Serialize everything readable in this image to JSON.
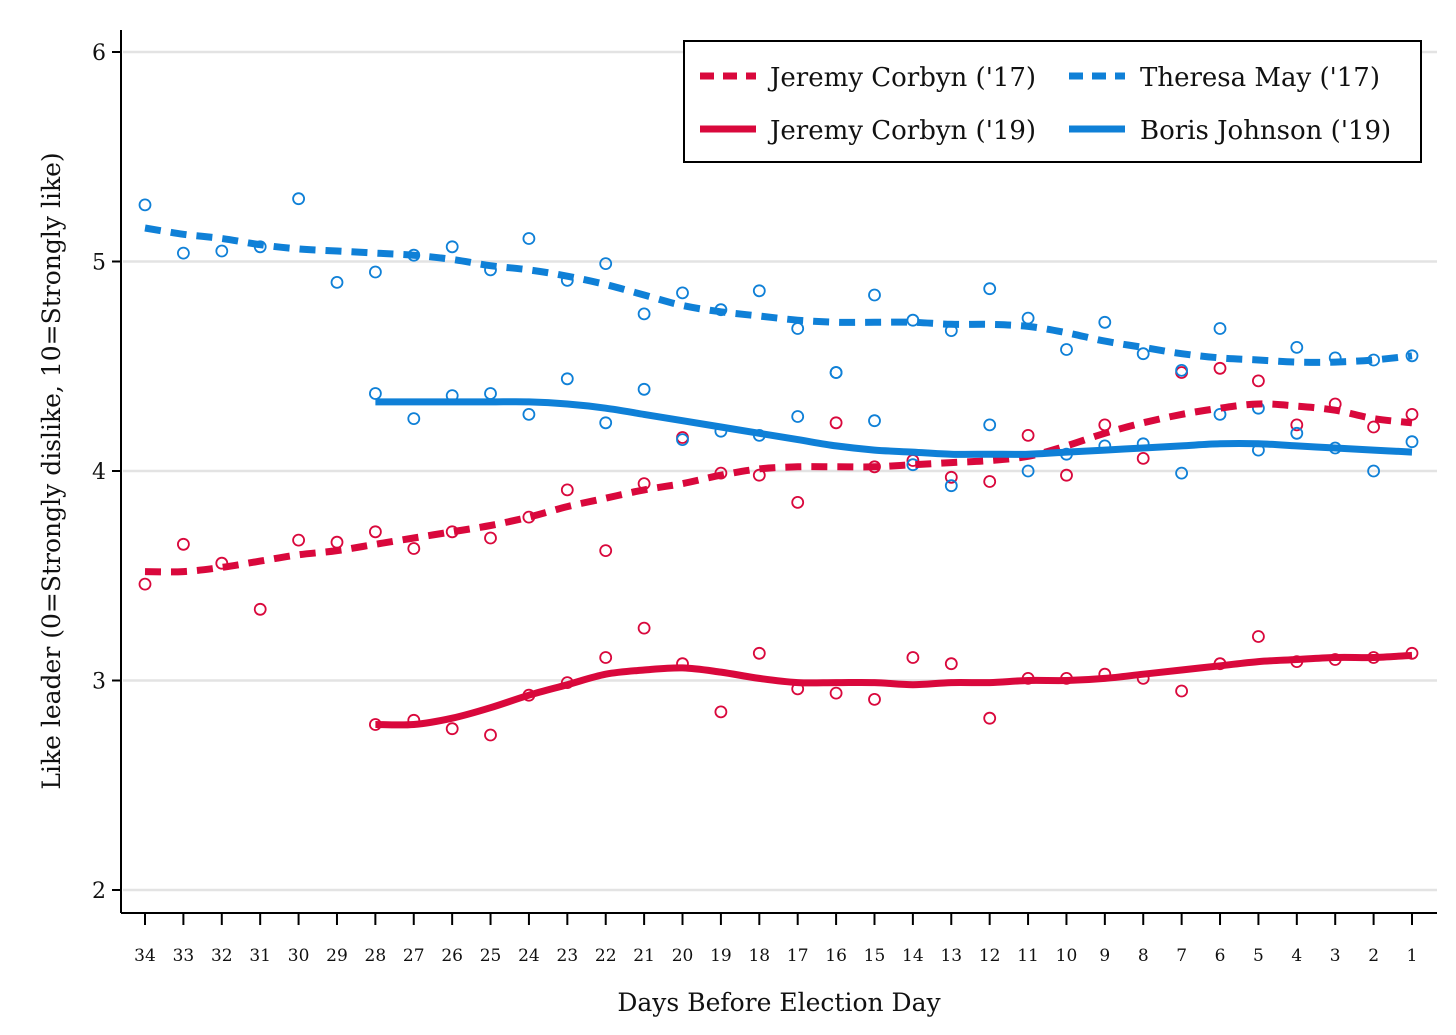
{
  "chart_data": {
    "type": "line",
    "title": "",
    "xlabel": "Days Before Election Day",
    "ylabel": "Like leader (0=Strongly dislike, 10=Strongly like)",
    "x_reversed": true,
    "xlim": [
      34,
      1
    ],
    "ylim": [
      2,
      6
    ],
    "x_ticks": [
      34,
      33,
      32,
      31,
      30,
      29,
      28,
      27,
      26,
      25,
      24,
      23,
      22,
      21,
      20,
      19,
      18,
      17,
      16,
      15,
      14,
      13,
      12,
      11,
      10,
      9,
      8,
      7,
      6,
      5,
      4,
      3,
      2,
      1
    ],
    "y_ticks": [
      2,
      3,
      4,
      5,
      6
    ],
    "grid": "horizontal",
    "legend_placement": "top-right",
    "colors": {
      "labour": "#d9083c",
      "conservative": "#0f80d7"
    },
    "series": [
      {
        "name": "Jeremy Corbyn ('17)",
        "color": "#d9083c",
        "line_style": "dashed",
        "x": [
          34,
          33,
          32,
          31,
          30,
          29,
          28,
          27,
          26,
          25,
          24,
          23,
          22,
          21,
          20,
          19,
          18,
          17,
          16,
          15,
          14,
          13,
          12,
          11,
          10,
          9,
          8,
          7,
          6,
          5,
          4,
          3,
          2,
          1
        ],
        "points": [
          3.46,
          3.65,
          3.56,
          3.34,
          3.67,
          3.66,
          3.71,
          3.63,
          3.71,
          3.68,
          3.78,
          3.91,
          3.62,
          3.94,
          4.16,
          3.99,
          3.98,
          3.85,
          4.23,
          4.02,
          4.05,
          3.97,
          3.95,
          4.17,
          3.98,
          4.22,
          4.06,
          4.47,
          4.49,
          4.43,
          4.22,
          4.32,
          4.21,
          4.27
        ],
        "trend": [
          3.52,
          3.52,
          3.54,
          3.57,
          3.6,
          3.62,
          3.65,
          3.68,
          3.71,
          3.74,
          3.78,
          3.83,
          3.87,
          3.91,
          3.94,
          3.98,
          4.01,
          4.02,
          4.02,
          4.02,
          4.03,
          4.04,
          4.05,
          4.07,
          4.12,
          4.18,
          4.23,
          4.27,
          4.3,
          4.32,
          4.31,
          4.29,
          4.25,
          4.23
        ]
      },
      {
        "name": "Theresa May ('17)",
        "color": "#0f80d7",
        "line_style": "dashed",
        "x": [
          34,
          33,
          32,
          31,
          30,
          29,
          28,
          27,
          26,
          25,
          24,
          23,
          22,
          21,
          20,
          19,
          18,
          17,
          16,
          15,
          14,
          13,
          12,
          11,
          10,
          9,
          8,
          7,
          6,
          5,
          4,
          3,
          2,
          1
        ],
        "points": [
          5.27,
          5.04,
          5.05,
          5.07,
          5.3,
          4.9,
          4.95,
          5.03,
          5.07,
          4.96,
          5.11,
          4.91,
          4.99,
          4.75,
          4.85,
          4.77,
          4.86,
          4.68,
          4.47,
          4.84,
          4.72,
          4.67,
          4.87,
          4.73,
          4.58,
          4.71,
          4.56,
          4.48,
          4.68,
          4.3,
          4.59,
          4.54,
          4.53,
          4.55
        ],
        "trend": [
          5.16,
          5.13,
          5.11,
          5.08,
          5.06,
          5.05,
          5.04,
          5.03,
          5.01,
          4.98,
          4.96,
          4.93,
          4.89,
          4.84,
          4.79,
          4.76,
          4.74,
          4.72,
          4.71,
          4.71,
          4.71,
          4.7,
          4.7,
          4.69,
          4.66,
          4.62,
          4.59,
          4.56,
          4.54,
          4.53,
          4.52,
          4.52,
          4.53,
          4.55
        ]
      },
      {
        "name": "Jeremy Corbyn ('19)",
        "color": "#d9083c",
        "line_style": "solid",
        "x": [
          28,
          27,
          26,
          25,
          24,
          23,
          22,
          21,
          20,
          19,
          18,
          17,
          16,
          15,
          14,
          13,
          12,
          11,
          10,
          9,
          8,
          7,
          6,
          5,
          4,
          3,
          2,
          1
        ],
        "points": [
          2.79,
          2.81,
          2.77,
          2.74,
          2.93,
          2.99,
          3.11,
          3.25,
          3.08,
          2.85,
          3.13,
          2.96,
          2.94,
          2.91,
          3.11,
          3.08,
          2.82,
          3.01,
          3.01,
          3.03,
          3.01,
          2.95,
          3.08,
          3.21,
          3.09,
          3.1,
          3.11,
          3.13
        ],
        "trend": [
          2.79,
          2.79,
          2.82,
          2.87,
          2.93,
          2.98,
          3.03,
          3.05,
          3.06,
          3.04,
          3.01,
          2.99,
          2.99,
          2.99,
          2.98,
          2.99,
          2.99,
          3.0,
          3.0,
          3.01,
          3.03,
          3.05,
          3.07,
          3.09,
          3.1,
          3.11,
          3.11,
          3.12
        ]
      },
      {
        "name": "Boris Johnson ('19)",
        "color": "#0f80d7",
        "line_style": "solid",
        "x": [
          28,
          27,
          26,
          25,
          24,
          23,
          22,
          21,
          20,
          19,
          18,
          17,
          16,
          15,
          14,
          13,
          12,
          11,
          10,
          9,
          8,
          7,
          6,
          5,
          4,
          3,
          2,
          1
        ],
        "points": [
          4.37,
          4.25,
          4.36,
          4.37,
          4.27,
          4.44,
          4.23,
          4.39,
          4.15,
          4.19,
          4.17,
          4.26,
          4.47,
          4.24,
          4.03,
          3.93,
          4.22,
          4.0,
          4.08,
          4.12,
          4.13,
          3.99,
          4.27,
          4.1,
          4.18,
          4.11,
          4.0,
          4.14
        ],
        "trend": [
          4.33,
          4.33,
          4.33,
          4.33,
          4.33,
          4.32,
          4.3,
          4.27,
          4.24,
          4.21,
          4.18,
          4.15,
          4.12,
          4.1,
          4.09,
          4.08,
          4.08,
          4.08,
          4.09,
          4.1,
          4.11,
          4.12,
          4.13,
          4.13,
          4.12,
          4.11,
          4.1,
          4.09
        ]
      }
    ]
  }
}
